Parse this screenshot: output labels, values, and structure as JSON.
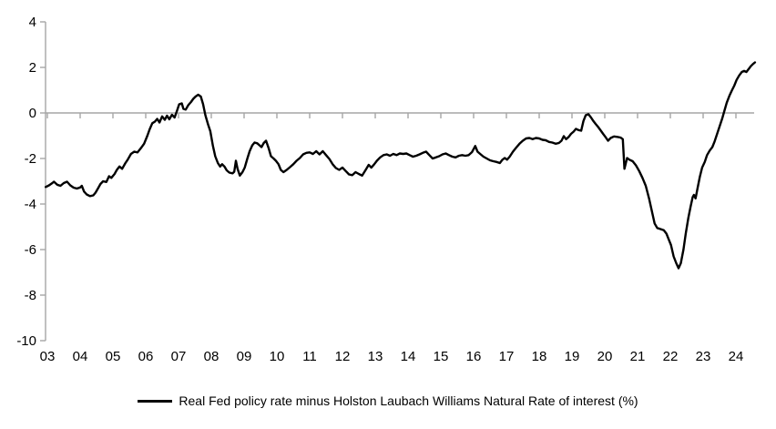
{
  "chart_data": {
    "type": "line",
    "legend": "Real Fed policy rate minus Holston Laubach Williams Natural Rate of interest (%)",
    "title": "",
    "xlabel": "",
    "ylabel": "",
    "ylim": [
      -10,
      4
    ],
    "xlim": [
      2002.95,
      2024.6
    ],
    "grid": "zero-line-only",
    "legend_position": "bottom-center",
    "colors": {
      "series": "#000000",
      "axis": "#a6a6a6",
      "zero_line": "#a6a6a6",
      "text": "#000000",
      "background": "#ffffff"
    },
    "y_ticks": [
      4,
      2,
      0,
      -2,
      -4,
      -6,
      -8,
      -10
    ],
    "x_tick_labels": [
      "03",
      "04",
      "05",
      "06",
      "07",
      "08",
      "09",
      "10",
      "11",
      "12",
      "13",
      "14",
      "15",
      "16",
      "17",
      "18",
      "19",
      "20",
      "21",
      "22",
      "23",
      "24"
    ],
    "x_tick_years": [
      2003,
      2004,
      2005,
      2006,
      2007,
      2008,
      2009,
      2010,
      2011,
      2012,
      2013,
      2014,
      2015,
      2016,
      2017,
      2018,
      2019,
      2020,
      2021,
      2022,
      2023,
      2024
    ],
    "series": [
      {
        "name": "Real Fed policy rate minus Holston Laubach Williams Natural Rate of interest (%)",
        "points": [
          [
            2002.95,
            -3.25
          ],
          [
            2003.05,
            -3.18
          ],
          [
            2003.15,
            -3.08
          ],
          [
            2003.2,
            -3.02
          ],
          [
            2003.3,
            -3.15
          ],
          [
            2003.4,
            -3.2
          ],
          [
            2003.5,
            -3.08
          ],
          [
            2003.6,
            -3.02
          ],
          [
            2003.7,
            -3.18
          ],
          [
            2003.8,
            -3.28
          ],
          [
            2003.9,
            -3.32
          ],
          [
            2004.0,
            -3.27
          ],
          [
            2004.05,
            -3.2
          ],
          [
            2004.12,
            -3.45
          ],
          [
            2004.2,
            -3.58
          ],
          [
            2004.3,
            -3.65
          ],
          [
            2004.4,
            -3.62
          ],
          [
            2004.47,
            -3.5
          ],
          [
            2004.55,
            -3.3
          ],
          [
            2004.62,
            -3.12
          ],
          [
            2004.7,
            -3.0
          ],
          [
            2004.8,
            -3.03
          ],
          [
            2004.88,
            -2.78
          ],
          [
            2004.95,
            -2.85
          ],
          [
            2005.05,
            -2.68
          ],
          [
            2005.12,
            -2.5
          ],
          [
            2005.2,
            -2.35
          ],
          [
            2005.28,
            -2.45
          ],
          [
            2005.38,
            -2.2
          ],
          [
            2005.45,
            -2.05
          ],
          [
            2005.55,
            -1.8
          ],
          [
            2005.65,
            -1.7
          ],
          [
            2005.75,
            -1.73
          ],
          [
            2005.85,
            -1.55
          ],
          [
            2005.95,
            -1.35
          ],
          [
            2006.05,
            -1.0
          ],
          [
            2006.12,
            -0.72
          ],
          [
            2006.2,
            -0.45
          ],
          [
            2006.28,
            -0.38
          ],
          [
            2006.35,
            -0.26
          ],
          [
            2006.42,
            -0.42
          ],
          [
            2006.5,
            -0.15
          ],
          [
            2006.58,
            -0.3
          ],
          [
            2006.65,
            -0.12
          ],
          [
            2006.72,
            -0.28
          ],
          [
            2006.8,
            -0.08
          ],
          [
            2006.88,
            -0.2
          ],
          [
            2006.95,
            0.08
          ],
          [
            2007.02,
            0.38
          ],
          [
            2007.1,
            0.42
          ],
          [
            2007.15,
            0.18
          ],
          [
            2007.22,
            0.15
          ],
          [
            2007.3,
            0.35
          ],
          [
            2007.38,
            0.48
          ],
          [
            2007.45,
            0.62
          ],
          [
            2007.52,
            0.72
          ],
          [
            2007.6,
            0.8
          ],
          [
            2007.68,
            0.72
          ],
          [
            2007.75,
            0.38
          ],
          [
            2007.82,
            -0.1
          ],
          [
            2007.9,
            -0.5
          ],
          [
            2007.97,
            -0.8
          ],
          [
            2008.05,
            -1.45
          ],
          [
            2008.12,
            -1.9
          ],
          [
            2008.2,
            -2.2
          ],
          [
            2008.27,
            -2.35
          ],
          [
            2008.33,
            -2.25
          ],
          [
            2008.4,
            -2.35
          ],
          [
            2008.47,
            -2.52
          ],
          [
            2008.55,
            -2.62
          ],
          [
            2008.65,
            -2.65
          ],
          [
            2008.7,
            -2.58
          ],
          [
            2008.75,
            -2.1
          ],
          [
            2008.8,
            -2.45
          ],
          [
            2008.87,
            -2.75
          ],
          [
            2008.95,
            -2.6
          ],
          [
            2009.02,
            -2.4
          ],
          [
            2009.1,
            -2.0
          ],
          [
            2009.17,
            -1.68
          ],
          [
            2009.25,
            -1.42
          ],
          [
            2009.32,
            -1.3
          ],
          [
            2009.4,
            -1.33
          ],
          [
            2009.47,
            -1.42
          ],
          [
            2009.53,
            -1.5
          ],
          [
            2009.6,
            -1.32
          ],
          [
            2009.67,
            -1.22
          ],
          [
            2009.75,
            -1.55
          ],
          [
            2009.82,
            -1.9
          ],
          [
            2009.9,
            -2.0
          ],
          [
            2009.97,
            -2.1
          ],
          [
            2010.05,
            -2.25
          ],
          [
            2010.12,
            -2.5
          ],
          [
            2010.2,
            -2.6
          ],
          [
            2010.3,
            -2.5
          ],
          [
            2010.4,
            -2.38
          ],
          [
            2010.5,
            -2.25
          ],
          [
            2010.6,
            -2.1
          ],
          [
            2010.7,
            -1.98
          ],
          [
            2010.8,
            -1.82
          ],
          [
            2010.9,
            -1.75
          ],
          [
            2011.0,
            -1.73
          ],
          [
            2011.1,
            -1.8
          ],
          [
            2011.2,
            -1.68
          ],
          [
            2011.3,
            -1.82
          ],
          [
            2011.4,
            -1.68
          ],
          [
            2011.5,
            -1.85
          ],
          [
            2011.6,
            -2.02
          ],
          [
            2011.7,
            -2.25
          ],
          [
            2011.8,
            -2.42
          ],
          [
            2011.9,
            -2.5
          ],
          [
            2012.0,
            -2.4
          ],
          [
            2012.1,
            -2.55
          ],
          [
            2012.2,
            -2.7
          ],
          [
            2012.3,
            -2.73
          ],
          [
            2012.4,
            -2.6
          ],
          [
            2012.5,
            -2.68
          ],
          [
            2012.6,
            -2.75
          ],
          [
            2012.7,
            -2.52
          ],
          [
            2012.8,
            -2.28
          ],
          [
            2012.88,
            -2.4
          ],
          [
            2012.97,
            -2.25
          ],
          [
            2013.05,
            -2.1
          ],
          [
            2013.15,
            -1.95
          ],
          [
            2013.25,
            -1.85
          ],
          [
            2013.35,
            -1.82
          ],
          [
            2013.45,
            -1.88
          ],
          [
            2013.55,
            -1.8
          ],
          [
            2013.65,
            -1.85
          ],
          [
            2013.75,
            -1.78
          ],
          [
            2013.85,
            -1.8
          ],
          [
            2013.95,
            -1.78
          ],
          [
            2014.05,
            -1.85
          ],
          [
            2014.15,
            -1.92
          ],
          [
            2014.25,
            -1.88
          ],
          [
            2014.35,
            -1.82
          ],
          [
            2014.45,
            -1.75
          ],
          [
            2014.55,
            -1.7
          ],
          [
            2014.65,
            -1.85
          ],
          [
            2014.75,
            -2.0
          ],
          [
            2014.85,
            -1.95
          ],
          [
            2014.95,
            -1.9
          ],
          [
            2015.05,
            -1.82
          ],
          [
            2015.15,
            -1.78
          ],
          [
            2015.25,
            -1.85
          ],
          [
            2015.35,
            -1.92
          ],
          [
            2015.45,
            -1.95
          ],
          [
            2015.55,
            -1.88
          ],
          [
            2015.65,
            -1.85
          ],
          [
            2015.75,
            -1.88
          ],
          [
            2015.85,
            -1.85
          ],
          [
            2015.95,
            -1.72
          ],
          [
            2016.05,
            -1.45
          ],
          [
            2016.12,
            -1.7
          ],
          [
            2016.2,
            -1.8
          ],
          [
            2016.3,
            -1.92
          ],
          [
            2016.4,
            -2.0
          ],
          [
            2016.5,
            -2.08
          ],
          [
            2016.6,
            -2.12
          ],
          [
            2016.7,
            -2.15
          ],
          [
            2016.8,
            -2.2
          ],
          [
            2016.88,
            -2.05
          ],
          [
            2016.95,
            -1.98
          ],
          [
            2017.02,
            -2.05
          ],
          [
            2017.1,
            -1.92
          ],
          [
            2017.2,
            -1.7
          ],
          [
            2017.3,
            -1.52
          ],
          [
            2017.4,
            -1.35
          ],
          [
            2017.5,
            -1.22
          ],
          [
            2017.6,
            -1.12
          ],
          [
            2017.7,
            -1.1
          ],
          [
            2017.8,
            -1.15
          ],
          [
            2017.9,
            -1.1
          ],
          [
            2018.0,
            -1.12
          ],
          [
            2018.1,
            -1.18
          ],
          [
            2018.2,
            -1.2
          ],
          [
            2018.3,
            -1.27
          ],
          [
            2018.4,
            -1.3
          ],
          [
            2018.5,
            -1.35
          ],
          [
            2018.6,
            -1.32
          ],
          [
            2018.68,
            -1.22
          ],
          [
            2018.75,
            -1.02
          ],
          [
            2018.82,
            -1.15
          ],
          [
            2018.9,
            -1.05
          ],
          [
            2018.97,
            -0.92
          ],
          [
            2019.05,
            -0.82
          ],
          [
            2019.12,
            -0.7
          ],
          [
            2019.2,
            -0.75
          ],
          [
            2019.28,
            -0.78
          ],
          [
            2019.35,
            -0.35
          ],
          [
            2019.42,
            -0.1
          ],
          [
            2019.5,
            -0.05
          ],
          [
            2019.58,
            -0.2
          ],
          [
            2019.65,
            -0.35
          ],
          [
            2019.72,
            -0.48
          ],
          [
            2019.8,
            -0.62
          ],
          [
            2019.88,
            -0.78
          ],
          [
            2019.95,
            -0.92
          ],
          [
            2020.02,
            -1.05
          ],
          [
            2020.1,
            -1.22
          ],
          [
            2020.18,
            -1.1
          ],
          [
            2020.28,
            -1.03
          ],
          [
            2020.38,
            -1.05
          ],
          [
            2020.48,
            -1.08
          ],
          [
            2020.55,
            -1.15
          ],
          [
            2020.6,
            -2.45
          ],
          [
            2020.68,
            -1.98
          ],
          [
            2020.75,
            -2.05
          ],
          [
            2020.85,
            -2.12
          ],
          [
            2020.95,
            -2.3
          ],
          [
            2021.05,
            -2.55
          ],
          [
            2021.15,
            -2.85
          ],
          [
            2021.25,
            -3.2
          ],
          [
            2021.35,
            -3.75
          ],
          [
            2021.45,
            -4.4
          ],
          [
            2021.52,
            -4.85
          ],
          [
            2021.6,
            -5.05
          ],
          [
            2021.7,
            -5.1
          ],
          [
            2021.8,
            -5.15
          ],
          [
            2021.88,
            -5.3
          ],
          [
            2021.95,
            -5.55
          ],
          [
            2022.02,
            -5.8
          ],
          [
            2022.1,
            -6.3
          ],
          [
            2022.18,
            -6.6
          ],
          [
            2022.25,
            -6.82
          ],
          [
            2022.32,
            -6.6
          ],
          [
            2022.4,
            -6.0
          ],
          [
            2022.47,
            -5.3
          ],
          [
            2022.55,
            -4.6
          ],
          [
            2022.62,
            -4.1
          ],
          [
            2022.68,
            -3.7
          ],
          [
            2022.72,
            -3.6
          ],
          [
            2022.77,
            -3.75
          ],
          [
            2022.83,
            -3.3
          ],
          [
            2022.9,
            -2.8
          ],
          [
            2022.97,
            -2.4
          ],
          [
            2023.05,
            -2.15
          ],
          [
            2023.12,
            -1.85
          ],
          [
            2023.2,
            -1.65
          ],
          [
            2023.28,
            -1.5
          ],
          [
            2023.35,
            -1.25
          ],
          [
            2023.42,
            -0.95
          ],
          [
            2023.5,
            -0.6
          ],
          [
            2023.58,
            -0.25
          ],
          [
            2023.65,
            0.1
          ],
          [
            2023.72,
            0.45
          ],
          [
            2023.8,
            0.75
          ],
          [
            2023.88,
            1.0
          ],
          [
            2023.95,
            1.2
          ],
          [
            2024.02,
            1.45
          ],
          [
            2024.1,
            1.65
          ],
          [
            2024.18,
            1.8
          ],
          [
            2024.25,
            1.85
          ],
          [
            2024.32,
            1.8
          ],
          [
            2024.4,
            1.95
          ],
          [
            2024.45,
            2.05
          ],
          [
            2024.52,
            2.15
          ],
          [
            2024.58,
            2.22
          ]
        ]
      }
    ]
  }
}
